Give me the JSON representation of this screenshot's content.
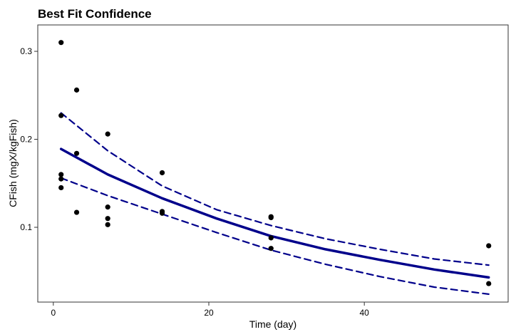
{
  "chart_data": {
    "type": "scatter",
    "title": "Best Fit Confidence",
    "xlabel": "Time  (day)",
    "ylabel": "CFish  (mgX/kgFish)",
    "xlim": [
      -2,
      58.5
    ],
    "ylim": [
      0.015,
      0.33
    ],
    "xticks": [
      0,
      20,
      40
    ],
    "yticks": [
      0.1,
      0.2,
      0.3
    ],
    "grid": false,
    "points": {
      "x": [
        1,
        1,
        1,
        1,
        1,
        3,
        3,
        3,
        7,
        7,
        7,
        7,
        14,
        14,
        14,
        28,
        28,
        28,
        28,
        56,
        56
      ],
      "y": [
        0.31,
        0.227,
        0.16,
        0.155,
        0.145,
        0.256,
        0.184,
        0.117,
        0.206,
        0.123,
        0.11,
        0.103,
        0.162,
        0.118,
        0.116,
        0.112,
        0.111,
        0.088,
        0.076,
        0.079,
        0.036
      ]
    },
    "series": [
      {
        "style": "solid",
        "x": [
          1,
          7,
          14,
          21,
          28,
          35,
          42,
          49,
          56
        ],
        "y": [
          0.189,
          0.16,
          0.133,
          0.11,
          0.09,
          0.075,
          0.063,
          0.052,
          0.043
        ]
      },
      {
        "style": "dashed",
        "x": [
          1,
          7,
          14,
          21,
          28,
          35,
          42,
          49,
          56
        ],
        "y": [
          0.23,
          0.187,
          0.147,
          0.12,
          0.102,
          0.087,
          0.075,
          0.064,
          0.057
        ]
      },
      {
        "style": "dashed",
        "x": [
          1,
          7,
          14,
          21,
          28,
          35,
          42,
          49,
          56
        ],
        "y": [
          0.156,
          0.136,
          0.115,
          0.094,
          0.074,
          0.058,
          0.044,
          0.032,
          0.024
        ]
      }
    ],
    "colors": {
      "line": "#00008b",
      "points": "#000000",
      "axis": "#333333"
    }
  }
}
